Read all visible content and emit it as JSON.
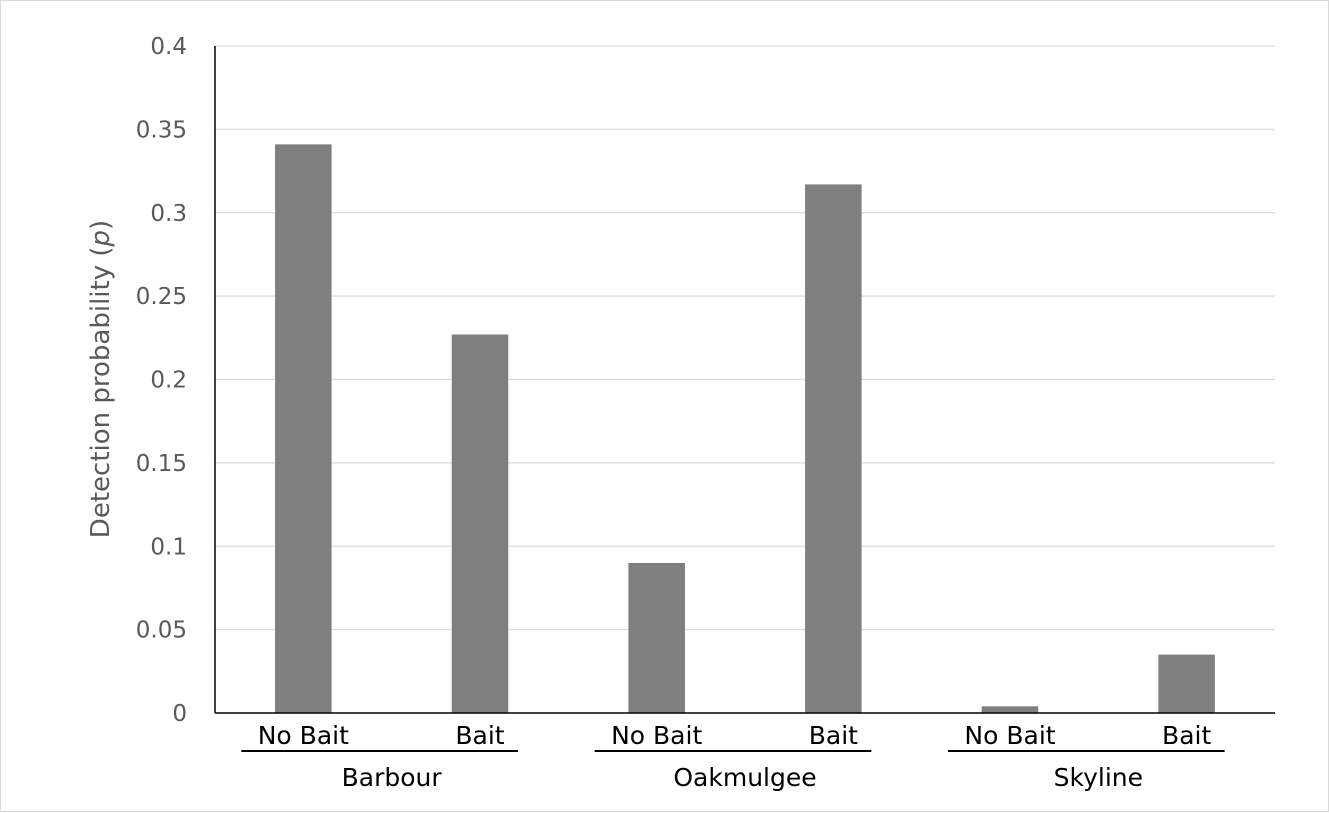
{
  "chart_data": {
    "type": "bar",
    "title": "",
    "xlabel": "",
    "ylabel": "Detection probability (p)",
    "ylabel_prefix": "Detection probability (",
    "ylabel_italic": "p",
    "ylabel_suffix": ")",
    "ylim": [
      0,
      0.4
    ],
    "yticks": [
      "0",
      "0.05",
      "0.1",
      "0.15",
      "0.2",
      "0.25",
      "0.3",
      "0.35",
      "0.4"
    ],
    "grid": true,
    "legend": "none",
    "bar_color": "#7f7f7f",
    "groups": [
      {
        "name": "Barbour",
        "categories": [
          "No Bait",
          "Bait"
        ],
        "values": [
          0.341,
          0.227
        ]
      },
      {
        "name": "Oakmulgee",
        "categories": [
          "No Bait",
          "Bait"
        ],
        "values": [
          0.09,
          0.317
        ]
      },
      {
        "name": "Skyline",
        "categories": [
          "No Bait",
          "Bait"
        ],
        "values": [
          0.004,
          0.035
        ]
      }
    ]
  }
}
